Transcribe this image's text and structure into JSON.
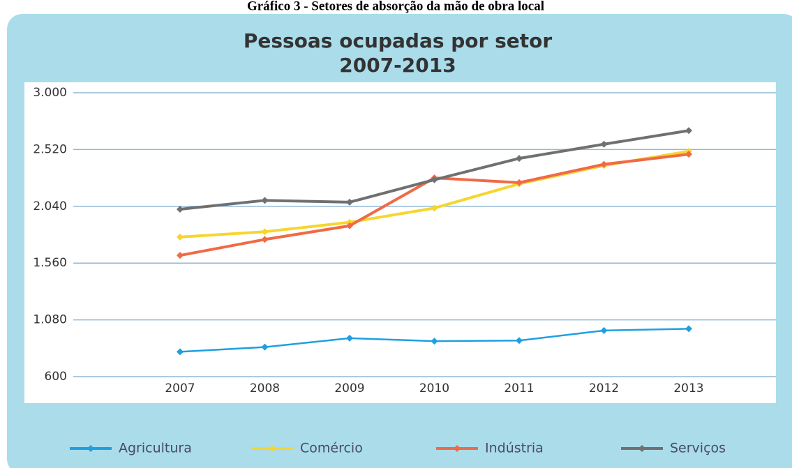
{
  "caption": "Gráfico 3 - Setores de absorção da mão de obra local",
  "chart_data": {
    "type": "line",
    "title": "Pessoas ocupadas por setor",
    "subtitle": "2007-2013",
    "categories": [
      "2007",
      "2008",
      "2009",
      "2010",
      "2011",
      "2012",
      "2013"
    ],
    "series": [
      {
        "name": "Agricultura",
        "color": "#1f9fe0",
        "values": [
          810,
          850,
          925,
          900,
          905,
          990,
          1005
        ]
      },
      {
        "name": "Comércio",
        "color": "#f5d630",
        "values": [
          1780,
          1825,
          1905,
          2025,
          2230,
          2385,
          2505
        ]
      },
      {
        "name": "Indústria",
        "color": "#f06a45",
        "values": [
          1625,
          1760,
          1875,
          2280,
          2240,
          2395,
          2480
        ]
      },
      {
        "name": "Serviços",
        "color": "#707070",
        "values": [
          2015,
          2090,
          2075,
          2265,
          2445,
          2565,
          2680
        ]
      }
    ],
    "ylim": [
      600,
      3000
    ],
    "yticks": [
      600,
      {
        "value": 1080,
        "label": "1.080"
      },
      {
        "value": 1560,
        "label": "1.560"
      },
      {
        "value": 2040,
        "label": "2.040"
      },
      {
        "value": 2520,
        "label": "2.520"
      },
      {
        "value": 3000,
        "label": "3.000"
      }
    ],
    "grid": true,
    "legend": "bottom"
  }
}
